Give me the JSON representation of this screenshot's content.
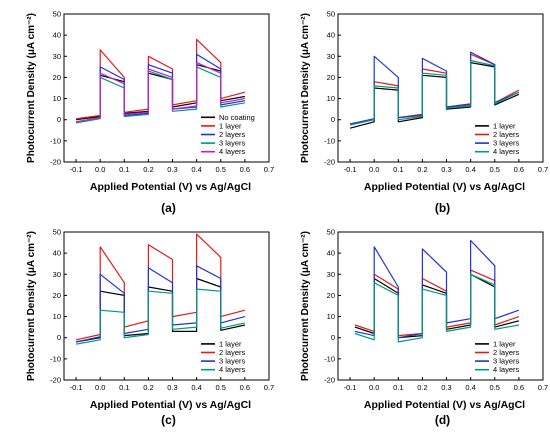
{
  "chart_data": [
    {
      "type": "line",
      "panel_label": "(a)",
      "xlabel": "Applied Potential (V) vs Ag/AgCl",
      "ylabel": "Photocurrent Density (μA cm⁻²)",
      "xlim": [
        -0.15,
        0.7
      ],
      "ylim": [
        -20,
        50
      ],
      "xticks": [
        -0.1,
        0.0,
        0.1,
        0.2,
        0.3,
        0.4,
        0.5,
        0.6,
        0.7
      ],
      "xtick_labels": [
        "-0.1",
        "0.0",
        "0.1",
        "0.2",
        "0.3",
        "0.4",
        "0.5",
        "0.6",
        "0.7"
      ],
      "yticks": [
        -20,
        -10,
        0,
        10,
        20,
        30,
        40,
        50
      ],
      "ytick_labels": [
        "-20",
        "-10",
        "0",
        "10",
        "20",
        "30",
        "40",
        "50"
      ],
      "legend_position": "bottom-right",
      "series": [
        {
          "name": "No coating",
          "color": "#000000",
          "x": [
            -0.1,
            0.0,
            0.0,
            0.1,
            0.1,
            0.2,
            0.2,
            0.3,
            0.3,
            0.4,
            0.4,
            0.5,
            0.5,
            0.6
          ],
          "y": [
            0.0,
            1.5,
            21.0,
            18.0,
            3.0,
            4.0,
            22.0,
            19.0,
            6.0,
            8.0,
            26.0,
            23.0,
            9.0,
            11.0
          ]
        },
        {
          "name": "1 layer",
          "color": "#e41a1c",
          "x": [
            -0.1,
            0.0,
            0.0,
            0.1,
            0.1,
            0.2,
            0.2,
            0.3,
            0.3,
            0.4,
            0.4,
            0.5,
            0.5,
            0.6
          ],
          "y": [
            0.5,
            2.0,
            33.0,
            20.0,
            3.5,
            5.0,
            30.0,
            24.0,
            7.0,
            9.0,
            38.0,
            27.0,
            10.0,
            13.0
          ]
        },
        {
          "name": "2 layers",
          "color": "#1f33d6",
          "x": [
            -0.1,
            0.0,
            0.0,
            0.1,
            0.1,
            0.2,
            0.2,
            0.3,
            0.3,
            0.4,
            0.4,
            0.5,
            0.5,
            0.6
          ],
          "y": [
            -1.0,
            1.0,
            25.0,
            19.0,
            2.0,
            3.0,
            26.0,
            22.0,
            5.0,
            6.0,
            31.0,
            24.0,
            7.0,
            9.0
          ]
        },
        {
          "name": "3 layers",
          "color": "#009980",
          "x": [
            -0.1,
            0.0,
            0.0,
            0.1,
            0.1,
            0.2,
            0.2,
            0.3,
            0.3,
            0.4,
            0.4,
            0.5,
            0.5,
            0.6
          ],
          "y": [
            -1.5,
            0.5,
            20.0,
            15.0,
            1.5,
            2.5,
            23.0,
            19.0,
            4.0,
            5.0,
            25.0,
            20.0,
            6.0,
            8.0
          ]
        },
        {
          "name": "4 layers",
          "color": "#c81ad0",
          "x": [
            -0.1,
            0.0,
            0.0,
            0.1,
            0.1,
            0.2,
            0.2,
            0.3,
            0.3,
            0.4,
            0.4,
            0.5,
            0.5,
            0.6
          ],
          "y": [
            -1.0,
            1.0,
            22.0,
            17.0,
            2.5,
            3.5,
            24.0,
            20.0,
            5.0,
            6.5,
            27.0,
            22.0,
            8.0,
            10.0
          ]
        }
      ]
    },
    {
      "type": "line",
      "panel_label": "(b)",
      "xlabel": "Applied Potential (V) vs Ag/AgCl",
      "ylabel": "Photocurrent Density (μA cm⁻²)",
      "xlim": [
        -0.15,
        0.7
      ],
      "ylim": [
        -20,
        50
      ],
      "xticks": [
        -0.1,
        0.0,
        0.1,
        0.2,
        0.3,
        0.4,
        0.5,
        0.6,
        0.7
      ],
      "xtick_labels": [
        "-0.1",
        "0.0",
        "0.1",
        "0.2",
        "0.3",
        "0.4",
        "0.5",
        "0.6",
        "0.7"
      ],
      "yticks": [
        -20,
        -10,
        0,
        10,
        20,
        30,
        40,
        50
      ],
      "ytick_labels": [
        "-20",
        "-10",
        "0",
        "10",
        "20",
        "30",
        "40",
        "50"
      ],
      "legend_position": "bottom-right",
      "series": [
        {
          "name": "1 layer",
          "color": "#000000",
          "x": [
            -0.1,
            0.0,
            0.0,
            0.1,
            0.1,
            0.2,
            0.2,
            0.3,
            0.3,
            0.4,
            0.4,
            0.5,
            0.5,
            0.6
          ],
          "y": [
            -4.0,
            -1.0,
            15.0,
            14.0,
            -1.0,
            1.0,
            21.0,
            20.0,
            5.0,
            6.0,
            27.0,
            25.0,
            7.0,
            12.0
          ]
        },
        {
          "name": "2 layers",
          "color": "#e41a1c",
          "x": [
            -0.1,
            0.0,
            0.0,
            0.1,
            0.1,
            0.2,
            0.2,
            0.3,
            0.3,
            0.4,
            0.4,
            0.5,
            0.5,
            0.6
          ],
          "y": [
            -2.0,
            0.0,
            18.0,
            16.0,
            1.0,
            2.0,
            24.0,
            22.0,
            6.0,
            7.0,
            31.0,
            26.0,
            8.0,
            14.0
          ]
        },
        {
          "name": "3 layers",
          "color": "#1f33d6",
          "x": [
            -0.1,
            0.0,
            0.0,
            0.1,
            0.1,
            0.2,
            0.2,
            0.3,
            0.3,
            0.4,
            0.4,
            0.5,
            0.5,
            0.6
          ],
          "y": [
            -2.0,
            0.5,
            30.0,
            20.0,
            1.0,
            2.5,
            29.0,
            23.0,
            6.0,
            7.5,
            32.0,
            26.0,
            8.0,
            13.0
          ]
        },
        {
          "name": "4 layers",
          "color": "#009980",
          "x": [
            -0.1,
            0.0,
            0.0,
            0.1,
            0.1,
            0.2,
            0.2,
            0.3,
            0.3,
            0.4,
            0.4,
            0.5,
            0.5,
            0.6
          ],
          "y": [
            -2.5,
            0.0,
            16.0,
            15.0,
            0.0,
            1.5,
            22.0,
            21.0,
            5.5,
            6.5,
            28.0,
            25.5,
            7.5,
            13.0
          ]
        }
      ]
    },
    {
      "type": "line",
      "panel_label": "(c)",
      "xlabel": "Applied Potential (V) vs Ag/AgCl",
      "ylabel": "Photocurrent Density (μA cm⁻²)",
      "xlim": [
        -0.15,
        0.7
      ],
      "ylim": [
        -20,
        50
      ],
      "xticks": [
        -0.1,
        0.0,
        0.1,
        0.2,
        0.3,
        0.4,
        0.5,
        0.6,
        0.7
      ],
      "xtick_labels": [
        "-0.1",
        "0.0",
        "0.1",
        "0.2",
        "0.3",
        "0.4",
        "0.5",
        "0.6",
        "0.7"
      ],
      "yticks": [
        -20,
        -10,
        0,
        10,
        20,
        30,
        40,
        50
      ],
      "ytick_labels": [
        "-20",
        "-10",
        "0",
        "10",
        "20",
        "30",
        "40",
        "50"
      ],
      "legend_position": "bottom-right",
      "series": [
        {
          "name": "1 layer",
          "color": "#000000",
          "x": [
            -0.1,
            0.0,
            0.0,
            0.1,
            0.1,
            0.2,
            0.2,
            0.3,
            0.3,
            0.4,
            0.4,
            0.5,
            0.5,
            0.6
          ],
          "y": [
            -2.0,
            0.0,
            22.0,
            20.0,
            1.0,
            2.0,
            24.0,
            22.0,
            3.0,
            3.0,
            28.0,
            24.0,
            3.5,
            6.0
          ]
        },
        {
          "name": "2 layers",
          "color": "#e41a1c",
          "x": [
            -0.1,
            0.0,
            0.0,
            0.1,
            0.1,
            0.2,
            0.2,
            0.3,
            0.3,
            0.4,
            0.4,
            0.5,
            0.5,
            0.6
          ],
          "y": [
            -1.0,
            1.5,
            43.0,
            26.0,
            5.0,
            8.0,
            44.0,
            37.0,
            10.0,
            12.0,
            49.0,
            38.0,
            10.0,
            13.0
          ]
        },
        {
          "name": "3 layers",
          "color": "#1f33d6",
          "x": [
            -0.1,
            0.0,
            0.0,
            0.1,
            0.1,
            0.2,
            0.2,
            0.3,
            0.3,
            0.4,
            0.4,
            0.5,
            0.5,
            0.6
          ],
          "y": [
            -2.0,
            0.5,
            30.0,
            21.0,
            2.0,
            4.0,
            33.0,
            26.0,
            6.0,
            7.0,
            34.0,
            28.0,
            7.0,
            10.0
          ]
        },
        {
          "name": "4 layers",
          "color": "#009980",
          "x": [
            -0.1,
            0.0,
            0.0,
            0.1,
            0.1,
            0.2,
            0.2,
            0.3,
            0.3,
            0.4,
            0.4,
            0.5,
            0.5,
            0.6
          ],
          "y": [
            -3.0,
            -1.0,
            13.0,
            12.0,
            0.0,
            1.5,
            22.0,
            21.0,
            4.0,
            5.0,
            23.0,
            22.0,
            4.5,
            7.0
          ]
        }
      ]
    },
    {
      "type": "line",
      "panel_label": "(d)",
      "xlabel": "Applied Potential (V) vs Ag/AgCl",
      "ylabel": "Photocurrent Density (μA cm⁻²)",
      "xlim": [
        -0.15,
        0.7
      ],
      "ylim": [
        -20,
        50
      ],
      "xticks": [
        -0.1,
        0.0,
        0.1,
        0.2,
        0.3,
        0.4,
        0.5,
        0.6,
        0.7
      ],
      "xtick_labels": [
        "-0.1",
        "0.0",
        "0.1",
        "0.2",
        "0.3",
        "0.4",
        "0.5",
        "0.6",
        "0.7"
      ],
      "yticks": [
        -20,
        -10,
        0,
        10,
        20,
        30,
        40,
        50
      ],
      "ytick_labels": [
        "-20",
        "-10",
        "0",
        "10",
        "20",
        "30",
        "40",
        "50"
      ],
      "legend_position": "bottom-right",
      "series": [
        {
          "name": "1 layer",
          "color": "#000000",
          "x": [
            -0.08,
            0.0,
            0.0,
            0.1,
            0.1,
            0.2,
            0.2,
            0.3,
            0.3,
            0.4,
            0.4,
            0.5,
            0.5,
            0.6
          ],
          "y": [
            5.0,
            2.0,
            28.0,
            21.0,
            0.0,
            1.0,
            25.0,
            21.0,
            4.0,
            6.0,
            30.0,
            24.0,
            5.0,
            8.0
          ]
        },
        {
          "name": "2 layers",
          "color": "#e41a1c",
          "x": [
            -0.08,
            0.0,
            0.0,
            0.1,
            0.1,
            0.2,
            0.2,
            0.3,
            0.3,
            0.4,
            0.4,
            0.5,
            0.5,
            0.6
          ],
          "y": [
            6.0,
            3.0,
            30.0,
            23.0,
            1.0,
            2.0,
            28.0,
            22.0,
            5.0,
            7.0,
            32.0,
            27.0,
            6.0,
            10.0
          ]
        },
        {
          "name": "3 layers",
          "color": "#1f33d6",
          "x": [
            -0.08,
            0.0,
            0.0,
            0.1,
            0.1,
            0.2,
            0.2,
            0.3,
            0.3,
            0.4,
            0.4,
            0.5,
            0.5,
            0.6
          ],
          "y": [
            3.0,
            1.0,
            43.0,
            24.0,
            0.0,
            2.0,
            42.0,
            31.0,
            7.0,
            9.0,
            46.0,
            34.0,
            9.0,
            13.0
          ]
        },
        {
          "name": "4 layers",
          "color": "#009980",
          "x": [
            -0.08,
            0.0,
            0.0,
            0.1,
            0.1,
            0.2,
            0.2,
            0.3,
            0.3,
            0.4,
            0.4,
            0.5,
            0.5,
            0.6
          ],
          "y": [
            2.0,
            -1.0,
            26.0,
            20.0,
            -2.0,
            0.0,
            23.0,
            20.0,
            3.0,
            5.0,
            30.0,
            25.0,
            4.0,
            6.0
          ]
        }
      ]
    }
  ]
}
